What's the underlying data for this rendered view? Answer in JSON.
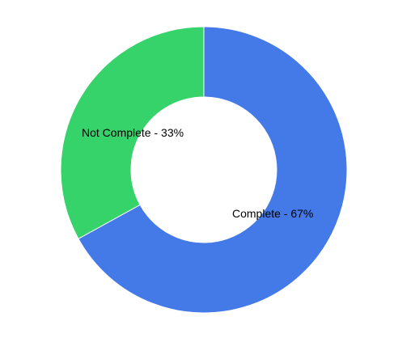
{
  "chart_data": {
    "type": "pie",
    "variant": "donut",
    "title": "",
    "legend": "none",
    "start_angle_deg": 0,
    "direction": "clockwise",
    "slices": [
      {
        "label": "Complete - 67%",
        "category": "Complete",
        "value": 67,
        "color": "#4479e8"
      },
      {
        "label": "Not Complete - 33%",
        "category": "Not Complete",
        "value": 33,
        "color": "#36d26a"
      }
    ]
  }
}
